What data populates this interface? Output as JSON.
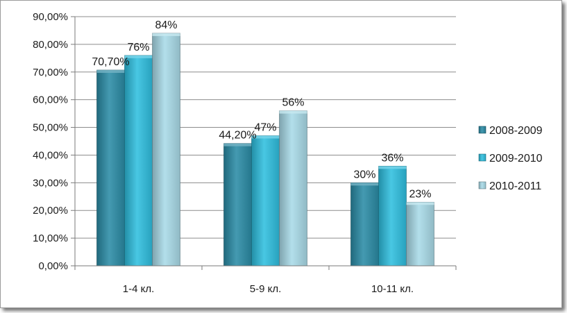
{
  "chart_data": {
    "type": "bar",
    "categories": [
      "1-4 кл.",
      "5-9 кл.",
      "10-11 кл."
    ],
    "series": [
      {
        "name": "2008-2009",
        "values": [
          70.7,
          44.2,
          30
        ],
        "labels": [
          "70,70%",
          "44,20%",
          "30%"
        ],
        "color": "#2b8ca6"
      },
      {
        "name": "2009-2010",
        "values": [
          76,
          47,
          36
        ],
        "labels": [
          "76%",
          "47%",
          "36%"
        ],
        "color": "#2fbfdf"
      },
      {
        "name": "2010-2011",
        "values": [
          84,
          56,
          23
        ],
        "labels": [
          "84%",
          "56%",
          "23%"
        ],
        "color": "#a9dbe8"
      }
    ],
    "ylim": [
      0,
      90
    ],
    "yticks": [
      0,
      10,
      20,
      30,
      40,
      50,
      60,
      70,
      80,
      90
    ],
    "ytick_labels": [
      "0,00%",
      "10,00%",
      "20,00%",
      "30,00%",
      "40,00%",
      "50,00%",
      "60,00%",
      "70,00%",
      "80,00%",
      "90,00%"
    ],
    "grid": true,
    "legend_position": "right",
    "title": "",
    "xlabel": "",
    "ylabel": ""
  }
}
